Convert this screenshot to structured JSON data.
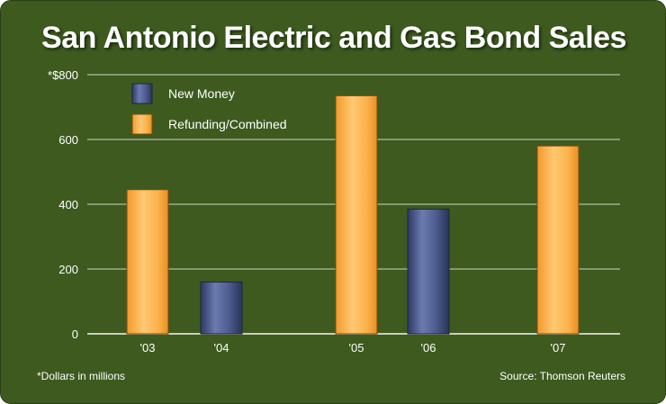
{
  "title": "San Antonio Electric and Gas Bond Sales",
  "footnote": "*Dollars in millions",
  "source": "Source: Thomson Reuters",
  "colors": {
    "background": "#3e5a1f",
    "new_money": "#4a5a8c",
    "refunding": "#f7a93a",
    "gridline": "#ffffff"
  },
  "chart_data": {
    "type": "bar",
    "title": "San Antonio Electric and Gas Bond Sales",
    "categories": [
      "'03",
      "'04",
      "'05",
      "'06",
      "'07"
    ],
    "series": [
      {
        "name": "New Money",
        "values": [
          null,
          160,
          null,
          385,
          null
        ]
      },
      {
        "name": "Refunding/Combined",
        "values": [
          445,
          null,
          735,
          null,
          580
        ]
      }
    ],
    "ylim": [
      0,
      800
    ],
    "yticks": [
      0,
      200,
      400,
      600,
      800
    ],
    "ytick_labels": [
      "0",
      "200",
      "400",
      "600",
      "*$800"
    ],
    "grid": true,
    "legend": "top-left"
  }
}
